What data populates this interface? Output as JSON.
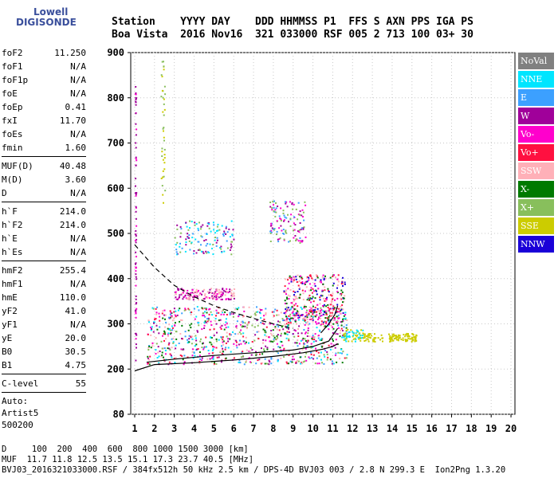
{
  "logo": {
    "line1": "Lowell",
    "line2": "DIGISONDE"
  },
  "header": {
    "line1": "Station    YYYY DAY    DDD HHMMSS P1  FFS S AXN PPS IGA PS",
    "line2": "Boa Vista  2016 Nov16  321 033000 RSF 005 2 713 100 03+ 30"
  },
  "params": {
    "group1": [
      {
        "k": "foF2",
        "v": "11.250"
      },
      {
        "k": "foF1",
        "v": "N/A"
      },
      {
        "k": "foF1p",
        "v": "N/A"
      },
      {
        "k": "foE",
        "v": "N/A"
      },
      {
        "k": "foEp",
        "v": "0.41"
      },
      {
        "k": "fxI",
        "v": "11.70"
      },
      {
        "k": "foEs",
        "v": "N/A"
      },
      {
        "k": "fmin",
        "v": "1.60"
      }
    ],
    "group2": [
      {
        "k": "MUF(D)",
        "v": "40.48"
      },
      {
        "k": "M(D)",
        "v": "3.60"
      },
      {
        "k": "D",
        "v": "N/A"
      }
    ],
    "group3": [
      {
        "k": "h`F",
        "v": "214.0"
      },
      {
        "k": "h`F2",
        "v": "214.0"
      },
      {
        "k": "h`E",
        "v": "N/A"
      },
      {
        "k": "h`Es",
        "v": "N/A"
      }
    ],
    "group4": [
      {
        "k": "hmF2",
        "v": "255.4"
      },
      {
        "k": "hmF1",
        "v": "N/A"
      },
      {
        "k": "hmE",
        "v": "110.0"
      },
      {
        "k": "yF2",
        "v": "41.0"
      },
      {
        "k": "yF1",
        "v": "N/A"
      },
      {
        "k": "yE",
        "v": "20.0"
      },
      {
        "k": "B0",
        "v": "30.5"
      },
      {
        "k": "B1",
        "v": "4.75"
      }
    ],
    "group5": [
      {
        "k": "C-level",
        "v": "55"
      }
    ],
    "auto": [
      "Auto:",
      "Artist5",
      "500200"
    ]
  },
  "legend": [
    {
      "label": "NoVal",
      "color": "#808080"
    },
    {
      "label": "NNE",
      "color": "#00e5ff"
    },
    {
      "label": "E",
      "color": "#3ca0ff"
    },
    {
      "label": "W",
      "color": "#a0009a"
    },
    {
      "label": "Vo-",
      "color": "#ff00cc"
    },
    {
      "label": "Vo+",
      "color": "#ff1040"
    },
    {
      "label": "SSW",
      "color": "#ffb0b8"
    },
    {
      "label": "X-",
      "color": "#007a00"
    },
    {
      "label": "X+",
      "color": "#88bf5c"
    },
    {
      "label": "SSE",
      "color": "#cccc00"
    },
    {
      "label": "NNW",
      "color": "#1a00d8"
    }
  ],
  "footer": {
    "line1": "D     100  200  400  600  800 1000 1500 3000 [km]",
    "line2": "MUF  11.7 11.8 12.5 13.5 15.1 17.3 23.7 40.5 [MHz]",
    "line3": "BVJ03_2016321033000.RSF / 384fx512h 50 kHz 2.5 km / DPS-4D BVJ03 003 / 2.8 N 299.3 E  Ion2Png 1.3.20"
  },
  "chart_data": {
    "type": "scatter",
    "x_ticks": [
      "1",
      "2",
      "3",
      "4",
      "5",
      "6",
      "7",
      "8",
      "9",
      "10",
      "11",
      "12",
      "13",
      "14",
      "15",
      "16",
      "17",
      "18",
      "19",
      "20"
    ],
    "y_ticks": [
      "900",
      "800",
      "700",
      "600",
      "500",
      "400",
      "300",
      "200",
      "80"
    ],
    "x_range": [
      0.8,
      20.2
    ],
    "y_display_scale": [
      [
        900,
        900
      ],
      [
        800,
        800
      ],
      [
        700,
        700
      ],
      [
        600,
        600
      ],
      [
        500,
        500
      ],
      [
        400,
        400
      ],
      [
        300,
        300
      ],
      [
        200,
        200
      ],
      [
        80,
        100
      ]
    ],
    "grid": true,
    "series": [
      {
        "name": "profile",
        "style": "solid",
        "color": "#000000",
        "x": [
          1.0,
          2.0,
          4.0,
          6.0,
          8.0,
          9.5,
          10.5,
          11.0,
          11.25
        ],
        "y": [
          196,
          210,
          214,
          220,
          228,
          236,
          244,
          250,
          256
        ]
      },
      {
        "name": "profile-lower",
        "style": "solid",
        "color": "#000000",
        "x": [
          1.6,
          3.0,
          5.0,
          7.0,
          9.0,
          10.0,
          10.8,
          11.25
        ],
        "y": [
          215,
          222,
          230,
          236,
          242,
          250,
          262,
          290
        ]
      },
      {
        "name": "profile-upper",
        "style": "solid",
        "color": "#000000",
        "x": [
          10.4,
          10.8,
          11.1,
          11.25
        ],
        "y": [
          280,
          300,
          320,
          340
        ]
      },
      {
        "name": "model",
        "style": "dashed",
        "color": "#000000",
        "x": [
          1.0,
          1.5,
          2.0,
          2.5,
          3.0,
          4.0,
          5.0,
          6.0,
          7.0,
          8.0,
          9.0
        ],
        "y": [
          475,
          450,
          425,
          405,
          385,
          360,
          340,
          325,
          312,
          300,
          290
        ]
      }
    ],
    "echo_regions": [
      {
        "x": [
          1.6,
          11.7
        ],
        "y": [
          212,
          340
        ],
        "colors": [
          "Vo-",
          "Vo+",
          "SSW",
          "X-",
          "X+",
          "E",
          "NNE",
          "W"
        ],
        "n": 900
      },
      {
        "x": [
          8.5,
          11.6
        ],
        "y": [
          300,
          410
        ],
        "colors": [
          "Vo+",
          "Vo-",
          "X-",
          "NNW",
          "SSW"
        ],
        "n": 350
      },
      {
        "x": [
          3.0,
          6.0
        ],
        "y": [
          355,
          380
        ],
        "colors": [
          "W",
          "Vo-",
          "SSW"
        ],
        "n": 160
      },
      {
        "x": [
          3.0,
          6.0
        ],
        "y": [
          455,
          530
        ],
        "colors": [
          "E",
          "NNE",
          "W",
          "X+"
        ],
        "n": 130
      },
      {
        "x": [
          7.8,
          9.6
        ],
        "y": [
          480,
          575
        ],
        "colors": [
          "W",
          "E",
          "X+",
          "Vo-"
        ],
        "n": 120
      },
      {
        "x": [
          11.5,
          12.5
        ],
        "y": [
          262,
          290
        ],
        "colors": [
          "SSE",
          "NNE"
        ],
        "n": 60
      },
      {
        "x": [
          13.8,
          15.2
        ],
        "y": [
          262,
          280
        ],
        "colors": [
          "SSE"
        ],
        "n": 90
      },
      {
        "x": [
          12.5,
          13.5
        ],
        "y": [
          262,
          280
        ],
        "colors": [
          "SSE"
        ],
        "n": 40
      },
      {
        "x": [
          1.0,
          1.05
        ],
        "y": [
          210,
          840
        ],
        "colors": [
          "W",
          "Vo-",
          "W"
        ],
        "n": 70
      },
      {
        "x": [
          2.3,
          2.5
        ],
        "y": [
          550,
          890
        ],
        "colors": [
          "SSE",
          "X+"
        ],
        "n": 40
      }
    ]
  }
}
